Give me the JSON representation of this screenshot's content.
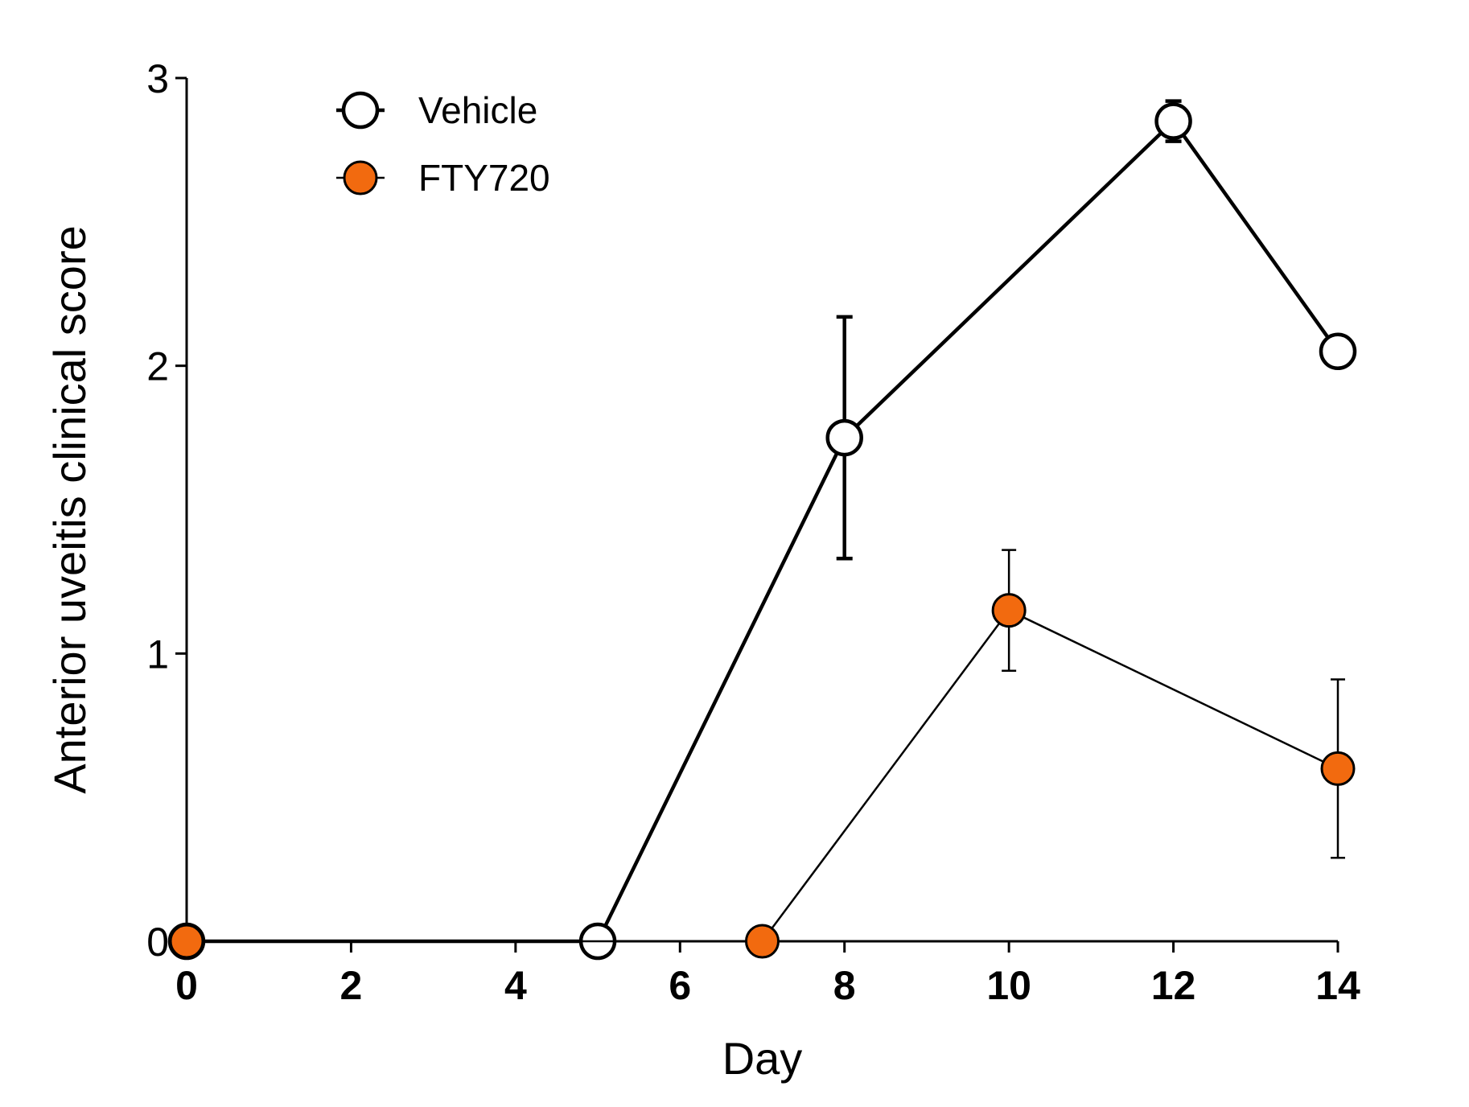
{
  "chart_data": {
    "type": "line",
    "title": "",
    "xlabel": "Day",
    "ylabel": "Anterior uveitis clinical score",
    "xlim": [
      0,
      14
    ],
    "ylim": [
      0,
      3
    ],
    "x_ticks": [
      0,
      2,
      4,
      6,
      8,
      10,
      12,
      14
    ],
    "y_ticks": [
      0,
      1,
      2,
      3
    ],
    "grid": false,
    "legend_position": "top-left",
    "series": [
      {
        "name": "Vehicle",
        "marker": "open-circle",
        "color": "#000000",
        "fill": "#ffffff",
        "x": [
          0,
          5,
          8,
          12,
          14
        ],
        "y": [
          0,
          0,
          1.75,
          2.85,
          2.05
        ],
        "error": [
          0,
          0,
          0.42,
          0.07,
          0
        ]
      },
      {
        "name": "FTY720",
        "marker": "filled-circle",
        "color": "#000000",
        "fill": "#f26a0f",
        "x": [
          0,
          7,
          10,
          14
        ],
        "y": [
          0,
          0,
          1.15,
          0.6
        ],
        "error": [
          0,
          0,
          0.21,
          0.31
        ]
      }
    ]
  }
}
